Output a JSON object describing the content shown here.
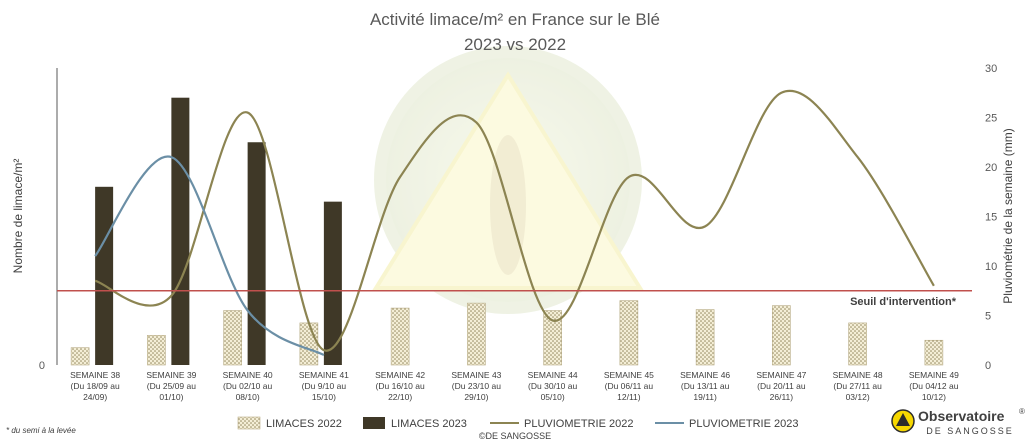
{
  "chart_data": {
    "type": "bar",
    "title": "Activité limace/m² en France sur le Blé",
    "subtitle": "2023 vs 2022",
    "categories": [
      {
        "line1": "SEMAINE 38",
        "line2": "(Du 18/09 au",
        "line3": "24/09)"
      },
      {
        "line1": "SEMAINE 39",
        "line2": "(Du 25/09 au",
        "line3": "01/10)"
      },
      {
        "line1": "SEMAINE 40",
        "line2": "(Du 02/10 au",
        "line3": "08/10)"
      },
      {
        "line1": "SEMAINE 41",
        "line2": "(Du 9/10 au",
        "line3": "15/10)"
      },
      {
        "line1": "SEMAINE 42",
        "line2": "(Du 16/10 au",
        "line3": "22/10)"
      },
      {
        "line1": "SEMAINE 43",
        "line2": "(Du 23/10 au",
        "line3": "29/10)"
      },
      {
        "line1": "SEMAINE 44",
        "line2": "(Du 30/10 au",
        "line3": "05/10)"
      },
      {
        "line1": "SEMAINE 45",
        "line2": "(Du 06/11 au",
        "line3": "12/11)"
      },
      {
        "line1": "SEMAINE 46",
        "line2": "(Du 13/11 au",
        "line3": "19/11)"
      },
      {
        "line1": "SEMAINE 47",
        "line2": "(Du 20/11 au",
        "line3": "26/11)"
      },
      {
        "line1": "SEMAINE 48",
        "line2": "(Du 27/11 au",
        "line3": "03/12)"
      },
      {
        "line1": "SEMAINE 49",
        "line2": "(Du 04/12 au",
        "line3": "10/12)"
      }
    ],
    "ylabel": "Nombre de limace/m²",
    "y_left_ticks": [
      "0"
    ],
    "y2label": "Pluviométrie de la semaine (mm)",
    "y2lim": [
      0,
      30
    ],
    "y2_ticks": [
      "0",
      "5",
      "10",
      "15",
      "20",
      "25",
      "30"
    ],
    "series": [
      {
        "name": "LIMACES 2022",
        "type": "bar",
        "axis": "left",
        "color": "#e9dfb8",
        "pattern": "dotted",
        "values": [
          0.35,
          0.6,
          1.1,
          0.85,
          1.15,
          1.25,
          1.1,
          1.3,
          1.12,
          1.2,
          0.85,
          0.5
        ]
      },
      {
        "name": "LIMACES 2023",
        "type": "bar",
        "axis": "left",
        "color": "#3f3827",
        "values": [
          3.6,
          5.4,
          4.5,
          3.3,
          null,
          null,
          null,
          null,
          null,
          null,
          null,
          null
        ]
      },
      {
        "name": "PLUVIOMETRIE 2022",
        "type": "line",
        "axis": "right",
        "color": "#8c8452",
        "values": [
          8.5,
          7,
          25.5,
          1.5,
          19,
          24.5,
          4.5,
          19,
          14,
          27.5,
          21,
          8
        ]
      },
      {
        "name": "PLUVIOMETRIE 2023",
        "type": "line",
        "axis": "right",
        "color": "#6b8fa6",
        "values": [
          11,
          21,
          5.5,
          1,
          null,
          null,
          null,
          null,
          null,
          null,
          null,
          null
        ]
      }
    ],
    "threshold": {
      "label": "Seuil d'intervention*",
      "value": 1.5,
      "axis": "left",
      "color": "#c0504d"
    },
    "grid": false,
    "legend_position": "bottom"
  },
  "footnote": "* du semi à la levée",
  "copyright": "©DE SANGOSSE",
  "logo": {
    "name": "Observatoire",
    "mark": "®",
    "sub": "DE SANGOSSE"
  }
}
